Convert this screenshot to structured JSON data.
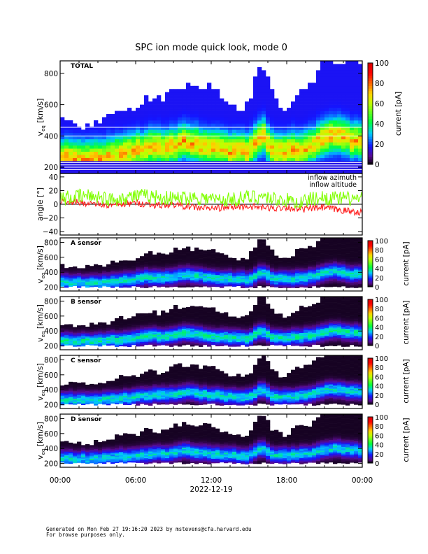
{
  "title": "SPC ion mode quick look, mode 0",
  "footer": {
    "line1": "Generated on Mon Feb 27 19:16:20 2023 by mstevens@cfa.harvard.edu",
    "line2": "For browse purposes only."
  },
  "chart_data": {
    "type": "heatmap",
    "x_date_label": "2022-12-19",
    "x_ticks": [
      "00:00",
      "06:00",
      "12:00",
      "18:00",
      "00:00"
    ],
    "x_range_hours": [
      0,
      24
    ],
    "hours": [
      0,
      1,
      2,
      3,
      4,
      5,
      6,
      7,
      8,
      9,
      10,
      11,
      12,
      13,
      14,
      15,
      16,
      17,
      18,
      19,
      20,
      21,
      22,
      23,
      24
    ],
    "peak_speed_kms": [
      260,
      255,
      250,
      250,
      270,
      280,
      300,
      320,
      320,
      330,
      360,
      340,
      320,
      310,
      300,
      290,
      400,
      300,
      300,
      310,
      330,
      380,
      400,
      370,
      360
    ],
    "upper_edge_kms": [
      480,
      470,
      460,
      470,
      520,
      560,
      580,
      650,
      620,
      700,
      720,
      700,
      700,
      620,
      560,
      600,
      880,
      620,
      560,
      700,
      720,
      880,
      880,
      880,
      880
    ],
    "colorbar": {
      "label": "current [pA]",
      "ticks": [
        "0",
        "20",
        "40",
        "60",
        "80",
        "100"
      ],
      "range": [
        0,
        100
      ]
    },
    "panels": [
      {
        "name": "TOTAL",
        "ylabel": "v",
        "ysub": "eq",
        "yunit": "[km/s]",
        "yticks": [
          "200",
          "400",
          "600",
          "800"
        ],
        "ylim": [
          160,
          880
        ],
        "intensity_scale": 0.55
      },
      {
        "name": "A sensor",
        "ylabel": "v",
        "ysub": "eq",
        "yunit": "[km/s]",
        "yticks": [
          "200",
          "400",
          "600",
          "800"
        ],
        "ylim": [
          150,
          860
        ],
        "intensity_scale": 0.34
      },
      {
        "name": "B sensor",
        "ylabel": "v",
        "ysub": "eq",
        "yunit": "[km/s]",
        "yticks": [
          "200",
          "400",
          "600",
          "800"
        ],
        "ylim": [
          150,
          860
        ],
        "intensity_scale": 0.36
      },
      {
        "name": "C sensor",
        "ylabel": "v",
        "ysub": "eq",
        "yunit": "[km/s]",
        "yticks": [
          "200",
          "400",
          "600",
          "800"
        ],
        "ylim": [
          150,
          860
        ],
        "intensity_scale": 0.34
      },
      {
        "name": "D sensor",
        "ylabel": "v",
        "ysub": "eq",
        "yunit": "[km/s]",
        "yticks": [
          "200",
          "400",
          "600",
          "800"
        ],
        "ylim": [
          150,
          860
        ],
        "intensity_scale": 0.33
      }
    ],
    "angle_panel": {
      "ylabel": "angle [°]",
      "yticks": [
        "40",
        "20",
        "0",
        "−20",
        "−40"
      ],
      "ylim": [
        -45,
        45
      ],
      "series": [
        {
          "name": "inflow azimuth",
          "color": "#ff2020",
          "values": [
            5,
            3,
            2,
            0,
            -2,
            0,
            2,
            0,
            -2,
            0,
            -3,
            -5,
            -6,
            -5,
            -4,
            -3,
            -5,
            -6,
            -4,
            -8,
            -6,
            -5,
            -8,
            -10,
            -12
          ]
        },
        {
          "name": "inflow altitude",
          "color": "#80ff00",
          "values": [
            8,
            10,
            12,
            12,
            6,
            10,
            12,
            12,
            10,
            8,
            10,
            10,
            8,
            6,
            8,
            10,
            12,
            8,
            6,
            2,
            8,
            10,
            8,
            8,
            8
          ]
        }
      ]
    }
  }
}
